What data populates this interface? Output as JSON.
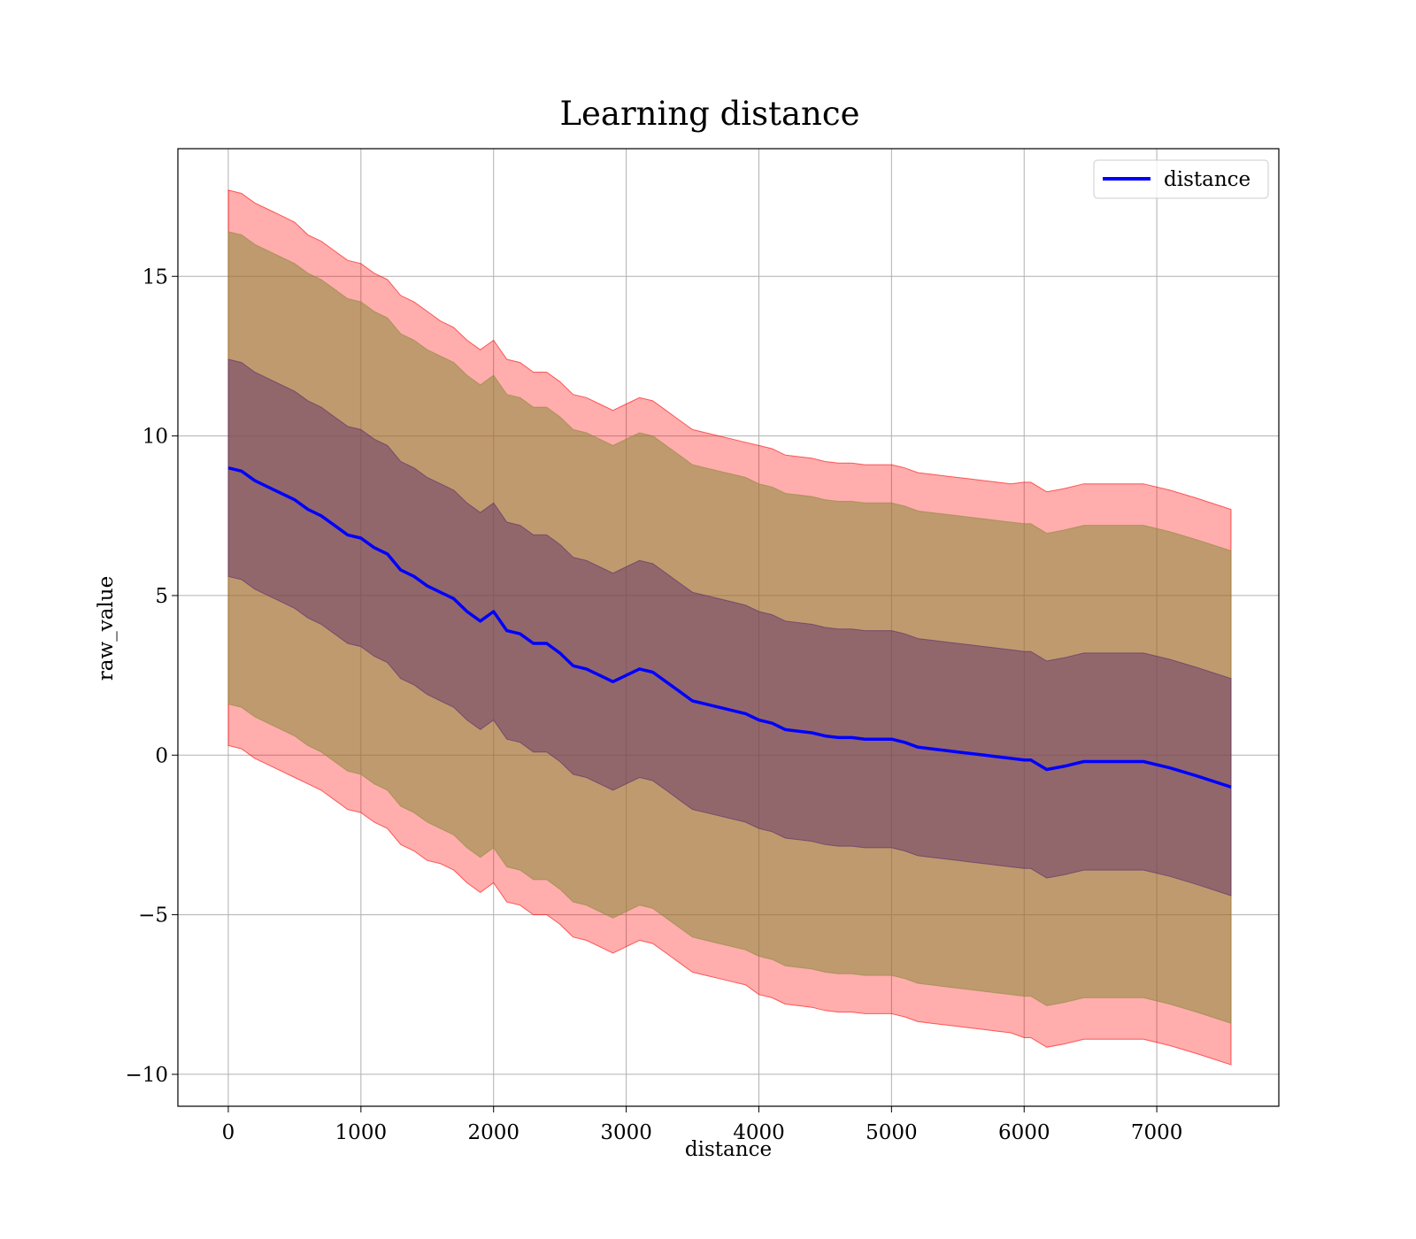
{
  "chart_data": {
    "type": "line",
    "title": "Learning distance",
    "xlabel": "distance",
    "ylabel": "raw_value",
    "xlim": [
      -380,
      7920
    ],
    "ylim": [
      -11,
      19
    ],
    "xticks": [
      0,
      1000,
      2000,
      3000,
      4000,
      5000,
      6000,
      7000
    ],
    "yticks": [
      -10,
      -5,
      0,
      5,
      10,
      15
    ],
    "ytick_labels": [
      "−10",
      "−5",
      "0",
      "5",
      "10",
      "15"
    ],
    "grid": true,
    "legend": {
      "placement": "top-right",
      "entries": [
        "distance"
      ]
    },
    "series": [
      {
        "name": "distance",
        "color": "#0000ff",
        "x": [
          0,
          100,
          200,
          300,
          400,
          500,
          600,
          700,
          800,
          900,
          1000,
          1100,
          1200,
          1300,
          1400,
          1500,
          1600,
          1700,
          1800,
          1900,
          2000,
          2100,
          2200,
          2300,
          2400,
          2500,
          2600,
          2700,
          2800,
          2900,
          3000,
          3100,
          3200,
          3300,
          3400,
          3500,
          3600,
          3700,
          3800,
          3900,
          4000,
          4100,
          4200,
          4300,
          4400,
          4500,
          4600,
          4700,
          4800,
          4900,
          5000,
          5100,
          5200,
          5300,
          5400,
          5500,
          5600,
          5700,
          5800,
          5900,
          6000,
          6050,
          6170,
          6300,
          6450,
          6600,
          6750,
          6900,
          7100,
          7300,
          7560
        ],
        "y": [
          9.0,
          8.9,
          8.6,
          8.4,
          8.2,
          8.0,
          7.7,
          7.5,
          7.2,
          6.9,
          6.8,
          6.5,
          6.3,
          5.8,
          5.6,
          5.3,
          5.1,
          4.9,
          4.5,
          4.2,
          4.5,
          3.9,
          3.8,
          3.5,
          3.5,
          3.2,
          2.8,
          2.7,
          2.5,
          2.3,
          2.5,
          2.7,
          2.6,
          2.3,
          2.0,
          1.7,
          1.6,
          1.5,
          1.4,
          1.3,
          1.1,
          1.0,
          0.8,
          0.75,
          0.7,
          0.6,
          0.55,
          0.55,
          0.5,
          0.5,
          0.5,
          0.4,
          0.25,
          0.2,
          0.15,
          0.1,
          0.05,
          0.0,
          -0.05,
          -0.1,
          -0.15,
          -0.15,
          -0.45,
          -0.35,
          -0.2,
          -0.2,
          -0.2,
          -0.2,
          -0.4,
          -0.65,
          -1.0
        ]
      }
    ],
    "bands": [
      {
        "sigma": 3,
        "color": "#ff0000",
        "opacity": 0.32,
        "half_width": [
          8.7,
          8.7,
          8.7,
          8.7,
          8.7,
          8.7,
          8.6,
          8.6,
          8.6,
          8.6,
          8.6,
          8.6,
          8.6,
          8.6,
          8.6,
          8.6,
          8.5,
          8.5,
          8.5,
          8.5,
          8.5,
          8.5,
          8.5,
          8.5,
          8.5,
          8.5,
          8.5,
          8.5,
          8.5,
          8.5,
          8.5,
          8.5,
          8.5,
          8.5,
          8.5,
          8.5,
          8.5,
          8.5,
          8.5,
          8.5,
          8.6,
          8.6,
          8.6,
          8.6,
          8.6,
          8.6,
          8.6,
          8.6,
          8.6,
          8.6,
          8.6,
          8.6,
          8.6,
          8.6,
          8.6,
          8.6,
          8.6,
          8.6,
          8.6,
          8.6,
          8.7,
          8.7,
          8.7,
          8.7,
          8.7,
          8.7,
          8.7,
          8.7,
          8.7,
          8.7,
          8.7
        ]
      },
      {
        "sigma": 2,
        "color": "#8a8a3a",
        "opacity": 0.55,
        "half_width": [
          7.4,
          7.4,
          7.4,
          7.4,
          7.4,
          7.4,
          7.4,
          7.4,
          7.4,
          7.4,
          7.4,
          7.4,
          7.4,
          7.4,
          7.4,
          7.4,
          7.4,
          7.4,
          7.4,
          7.4,
          7.4,
          7.4,
          7.4,
          7.4,
          7.4,
          7.4,
          7.4,
          7.4,
          7.4,
          7.4,
          7.4,
          7.4,
          7.4,
          7.4,
          7.4,
          7.4,
          7.4,
          7.4,
          7.4,
          7.4,
          7.4,
          7.4,
          7.4,
          7.4,
          7.4,
          7.4,
          7.4,
          7.4,
          7.4,
          7.4,
          7.4,
          7.4,
          7.4,
          7.4,
          7.4,
          7.4,
          7.4,
          7.4,
          7.4,
          7.4,
          7.4,
          7.4,
          7.4,
          7.4,
          7.4,
          7.4,
          7.4,
          7.4,
          7.4,
          7.4,
          7.4
        ]
      },
      {
        "sigma": 1,
        "color": "#5a2a6a",
        "opacity": 0.45,
        "half_width": [
          3.4,
          3.4,
          3.4,
          3.4,
          3.4,
          3.4,
          3.4,
          3.4,
          3.4,
          3.4,
          3.4,
          3.4,
          3.4,
          3.4,
          3.4,
          3.4,
          3.4,
          3.4,
          3.4,
          3.4,
          3.4,
          3.4,
          3.4,
          3.4,
          3.4,
          3.4,
          3.4,
          3.4,
          3.4,
          3.4,
          3.4,
          3.4,
          3.4,
          3.4,
          3.4,
          3.4,
          3.4,
          3.4,
          3.4,
          3.4,
          3.4,
          3.4,
          3.4,
          3.4,
          3.4,
          3.4,
          3.4,
          3.4,
          3.4,
          3.4,
          3.4,
          3.4,
          3.4,
          3.4,
          3.4,
          3.4,
          3.4,
          3.4,
          3.4,
          3.4,
          3.4,
          3.4,
          3.4,
          3.4,
          3.4,
          3.4,
          3.4,
          3.4,
          3.4,
          3.4,
          3.4
        ]
      }
    ]
  }
}
